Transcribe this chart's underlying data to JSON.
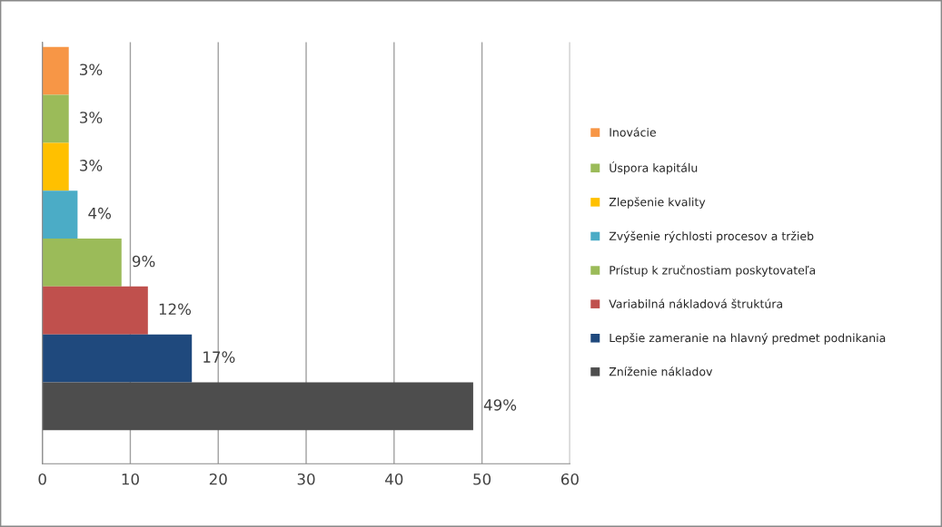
{
  "chart_data": {
    "type": "bar",
    "orientation": "horizontal",
    "stacked": true,
    "categories": [
      null,
      null,
      null,
      null,
      null,
      null,
      null,
      null
    ],
    "series": [
      {
        "name": "Inovácie",
        "color": "#f79646",
        "values": [
          3,
          null,
          null,
          null,
          null,
          null,
          null,
          null
        ],
        "value_labels": [
          "3%",
          null,
          null,
          null,
          null,
          null,
          null,
          null
        ]
      },
      {
        "name": "Úspora kapitálu",
        "color": "#9bbb59",
        "values": [
          null,
          3,
          null,
          null,
          null,
          null,
          null,
          null
        ],
        "value_labels": [
          null,
          "3%",
          null,
          null,
          null,
          null,
          null,
          null
        ]
      },
      {
        "name": "Zlepšenie kvality",
        "color": "#ffc000",
        "values": [
          null,
          null,
          3,
          null,
          null,
          null,
          null,
          null
        ],
        "value_labels": [
          null,
          null,
          "3%",
          null,
          null,
          null,
          null,
          null
        ]
      },
      {
        "name": "Zvýšenie rýchlosti procesov a tržieb",
        "color": "#4bacc6",
        "values": [
          null,
          null,
          null,
          4,
          null,
          null,
          null,
          null
        ],
        "value_labels": [
          null,
          null,
          null,
          "4%",
          null,
          null,
          null,
          null
        ]
      },
      {
        "name": "Prístup k zručnostiam poskytovateľa",
        "color": "#9bbb59",
        "values": [
          null,
          null,
          null,
          null,
          9,
          null,
          null,
          null
        ],
        "value_labels": [
          null,
          null,
          null,
          null,
          "9%",
          null,
          null,
          null
        ]
      },
      {
        "name": "Variabilná nákladová štruktúra",
        "color": "#c0504d",
        "values": [
          null,
          null,
          null,
          null,
          null,
          12,
          null,
          null
        ],
        "value_labels": [
          null,
          null,
          null,
          null,
          null,
          "12%",
          null,
          null
        ]
      },
      {
        "name": "Lepšie zameranie na hlavný predmet podnikania",
        "color": "#1f497d",
        "values": [
          null,
          null,
          null,
          null,
          null,
          null,
          17,
          null
        ],
        "value_labels": [
          null,
          null,
          null,
          null,
          null,
          null,
          "17%",
          null
        ]
      },
      {
        "name": "Zníženie nákladov",
        "color": "#4d4d4d",
        "values": [
          null,
          null,
          null,
          null,
          null,
          null,
          null,
          49
        ],
        "value_labels": [
          null,
          null,
          null,
          null,
          null,
          null,
          null,
          "49%"
        ]
      }
    ],
    "xlim": [
      0,
      60
    ],
    "xticks": [
      0,
      10,
      20,
      30,
      40,
      50,
      60
    ],
    "grid": "x",
    "legend": "right",
    "tick_labels": "x"
  }
}
